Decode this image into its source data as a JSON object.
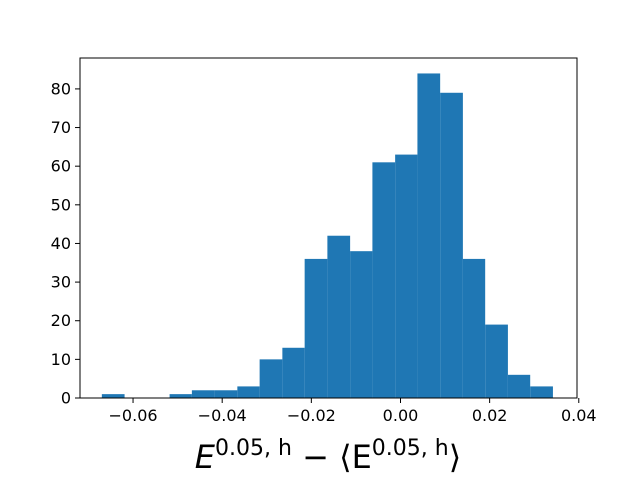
{
  "chart_data": {
    "type": "histogram",
    "bins": [
      -0.067,
      -0.0619,
      -0.0569,
      -0.0518,
      -0.0468,
      -0.0417,
      -0.0366,
      -0.0316,
      -0.0265,
      -0.0215,
      -0.0164,
      -0.0113,
      -0.0063,
      -0.0012,
      0.0038,
      0.0089,
      0.014,
      0.019,
      0.0241,
      0.0291,
      0.0342
    ],
    "values": [
      1,
      0,
      0,
      1,
      2,
      2,
      3,
      10,
      13,
      36,
      42,
      38,
      61,
      63,
      84,
      79,
      36,
      19,
      6,
      3
    ],
    "color": "#1f77b4",
    "xlim": [
      -0.0719,
      0.0396
    ],
    "ylim": [
      0,
      88
    ],
    "xticks": [
      {
        "value": -0.06,
        "label": "−0.06"
      },
      {
        "value": -0.04,
        "label": "−0.04"
      },
      {
        "value": -0.02,
        "label": "−0.02"
      },
      {
        "value": 0,
        "label": "0.00"
      },
      0.02,
      0.04
    ],
    "yticks": [
      0,
      10,
      20,
      30,
      40,
      50,
      60,
      70,
      80
    ],
    "xlabel": [
      "E",
      "0.05, h",
      " − ⟨E",
      "0.05, h",
      "⟩"
    ]
  }
}
